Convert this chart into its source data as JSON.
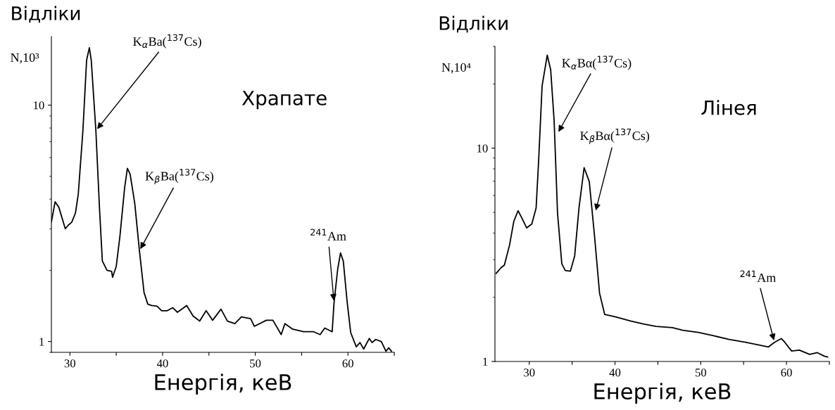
{
  "chart_data": [
    {
      "type": "line",
      "title": "Храпате",
      "xlabel": "Енергія, кеВ",
      "ylabel": "Відліки",
      "log": "y",
      "grid": false,
      "legend": false,
      "line_style": "solid",
      "marker": "none",
      "xlim": [
        28,
        65
      ],
      "ylim": [
        0.9,
        19.5
      ],
      "xticks": [
        30,
        {
          "value": 35,
          "label": null
        },
        40,
        {
          "value": 45,
          "label": null
        },
        50,
        {
          "value": 55,
          "label": null
        },
        60,
        {
          "value": 65,
          "label": null
        }
      ],
      "yticks": [
        1,
        10
      ],
      "annotations": [
        "N,10³",
        {
          "text": "K$_{α}$Ba($^{137}$Cs)",
          "x": 32.8,
          "y": 7.8
        },
        {
          "text": "K$_{β}$Ba($^{137}$Cs)",
          "x": 37.5,
          "y": 2.42
        },
        {
          "text": "$^{241}$Am",
          "x": 58.5,
          "y": 1.46
        }
      ],
      "series": [
        {
          "color": "#000000",
          "x": [
            28.0,
            28.4,
            28.8,
            29.5,
            29.8,
            30.2,
            30.6,
            30.9,
            31.4,
            31.8,
            32.1,
            32.3,
            32.8,
            33.2,
            33.5,
            34.0,
            34.5,
            34.6,
            35.0,
            35.4,
            35.9,
            36.2,
            36.5,
            37.0,
            37.5,
            38.0,
            38.4,
            38.8,
            39.4,
            39.9,
            40.5,
            41.1,
            41.6,
            42.6,
            43.3,
            44.0,
            44.7,
            45.4,
            46.3,
            47.0,
            47.8,
            48.5,
            49.5,
            49.9,
            51.2,
            51.9,
            52.8,
            53.2,
            54.0,
            55.2,
            56.3,
            57.0,
            57.5,
            58.3,
            58.5,
            58.9,
            59.2,
            59.5,
            59.9,
            60.3,
            60.9,
            61.3,
            61.7,
            62.3,
            62.6,
            63.0,
            63.6,
            64.1,
            64.4,
            64.7
          ],
          "values": [
            3.2,
            3.9,
            3.7,
            3.0,
            3.1,
            3.2,
            3.5,
            4.2,
            7.8,
            15.5,
            17.5,
            15.5,
            7.8,
            3.6,
            2.19,
            2.0,
            1.98,
            1.87,
            2.08,
            2.8,
            4.46,
            5.4,
            5.1,
            3.83,
            2.42,
            1.61,
            1.44,
            1.42,
            1.41,
            1.35,
            1.35,
            1.39,
            1.33,
            1.42,
            1.28,
            1.22,
            1.35,
            1.23,
            1.37,
            1.22,
            1.19,
            1.27,
            1.25,
            1.16,
            1.23,
            1.23,
            1.07,
            1.19,
            1.13,
            1.1,
            1.1,
            1.07,
            1.14,
            1.1,
            1.46,
            2.03,
            2.37,
            2.19,
            1.49,
            1.09,
            0.95,
            0.99,
            0.93,
            1.03,
            0.99,
            1.02,
            1.0,
            0.91,
            0.94,
            0.91
          ]
        }
      ]
    },
    {
      "type": "line",
      "title": "Лінея",
      "xlabel": "Енергія, кеВ",
      "ylabel": "Відліки",
      "log": "y",
      "grid": false,
      "legend": false,
      "line_style": "solid",
      "marker": "none",
      "xlim": [
        26,
        65
      ],
      "ylim": [
        1,
        30
      ],
      "xticks": [
        30,
        {
          "value": 35,
          "label": null
        },
        40,
        {
          "value": 45,
          "label": null
        },
        50,
        {
          "value": 55,
          "label": null
        },
        60,
        {
          "value": 65,
          "label": null
        }
      ],
      "yticks": [
        1,
        10
      ],
      "annotations": [
        "N,10⁴",
        {
          "text": "K$_{α}$Bα($^{137}$Cs)",
          "x": 33.3,
          "y": 11.7
        },
        {
          "text": "K$_{β}$Bα($^{137}$Cs)",
          "x": 37.7,
          "y": 5.0
        },
        {
          "text": "$^{241}$Am",
          "x": 58.6,
          "y": 1.23
        }
      ],
      "series": [
        {
          "color": "#000000",
          "x": [
            26.15,
            26.7,
            27.1,
            27.7,
            28.2,
            28.7,
            29.1,
            29.7,
            30.3,
            30.8,
            31.1,
            31.5,
            32.1,
            32.5,
            32.9,
            33.3,
            33.8,
            34.2,
            34.8,
            35.3,
            35.8,
            36.4,
            37.0,
            37.6,
            38.2,
            38.8,
            40.0,
            41.8,
            43.3,
            44.8,
            46.7,
            47.9,
            49.7,
            51.5,
            53.3,
            55.2,
            57.0,
            57.9,
            58.6,
            59.4,
            59.8,
            60.6,
            61.5,
            62.7,
            63.6,
            64.4,
            64.8
          ],
          "values": [
            2.59,
            2.75,
            2.83,
            3.51,
            4.54,
            5.09,
            4.74,
            4.23,
            4.41,
            5.24,
            8.8,
            19.6,
            27.3,
            23.3,
            13.5,
            4.95,
            2.87,
            2.67,
            2.65,
            3.13,
            5.24,
            8.1,
            6.98,
            3.93,
            2.09,
            1.66,
            1.62,
            1.55,
            1.5,
            1.46,
            1.44,
            1.4,
            1.37,
            1.32,
            1.27,
            1.23,
            1.19,
            1.17,
            1.23,
            1.28,
            1.23,
            1.12,
            1.13,
            1.08,
            1.1,
            1.06,
            1.05
          ]
        }
      ]
    }
  ]
}
